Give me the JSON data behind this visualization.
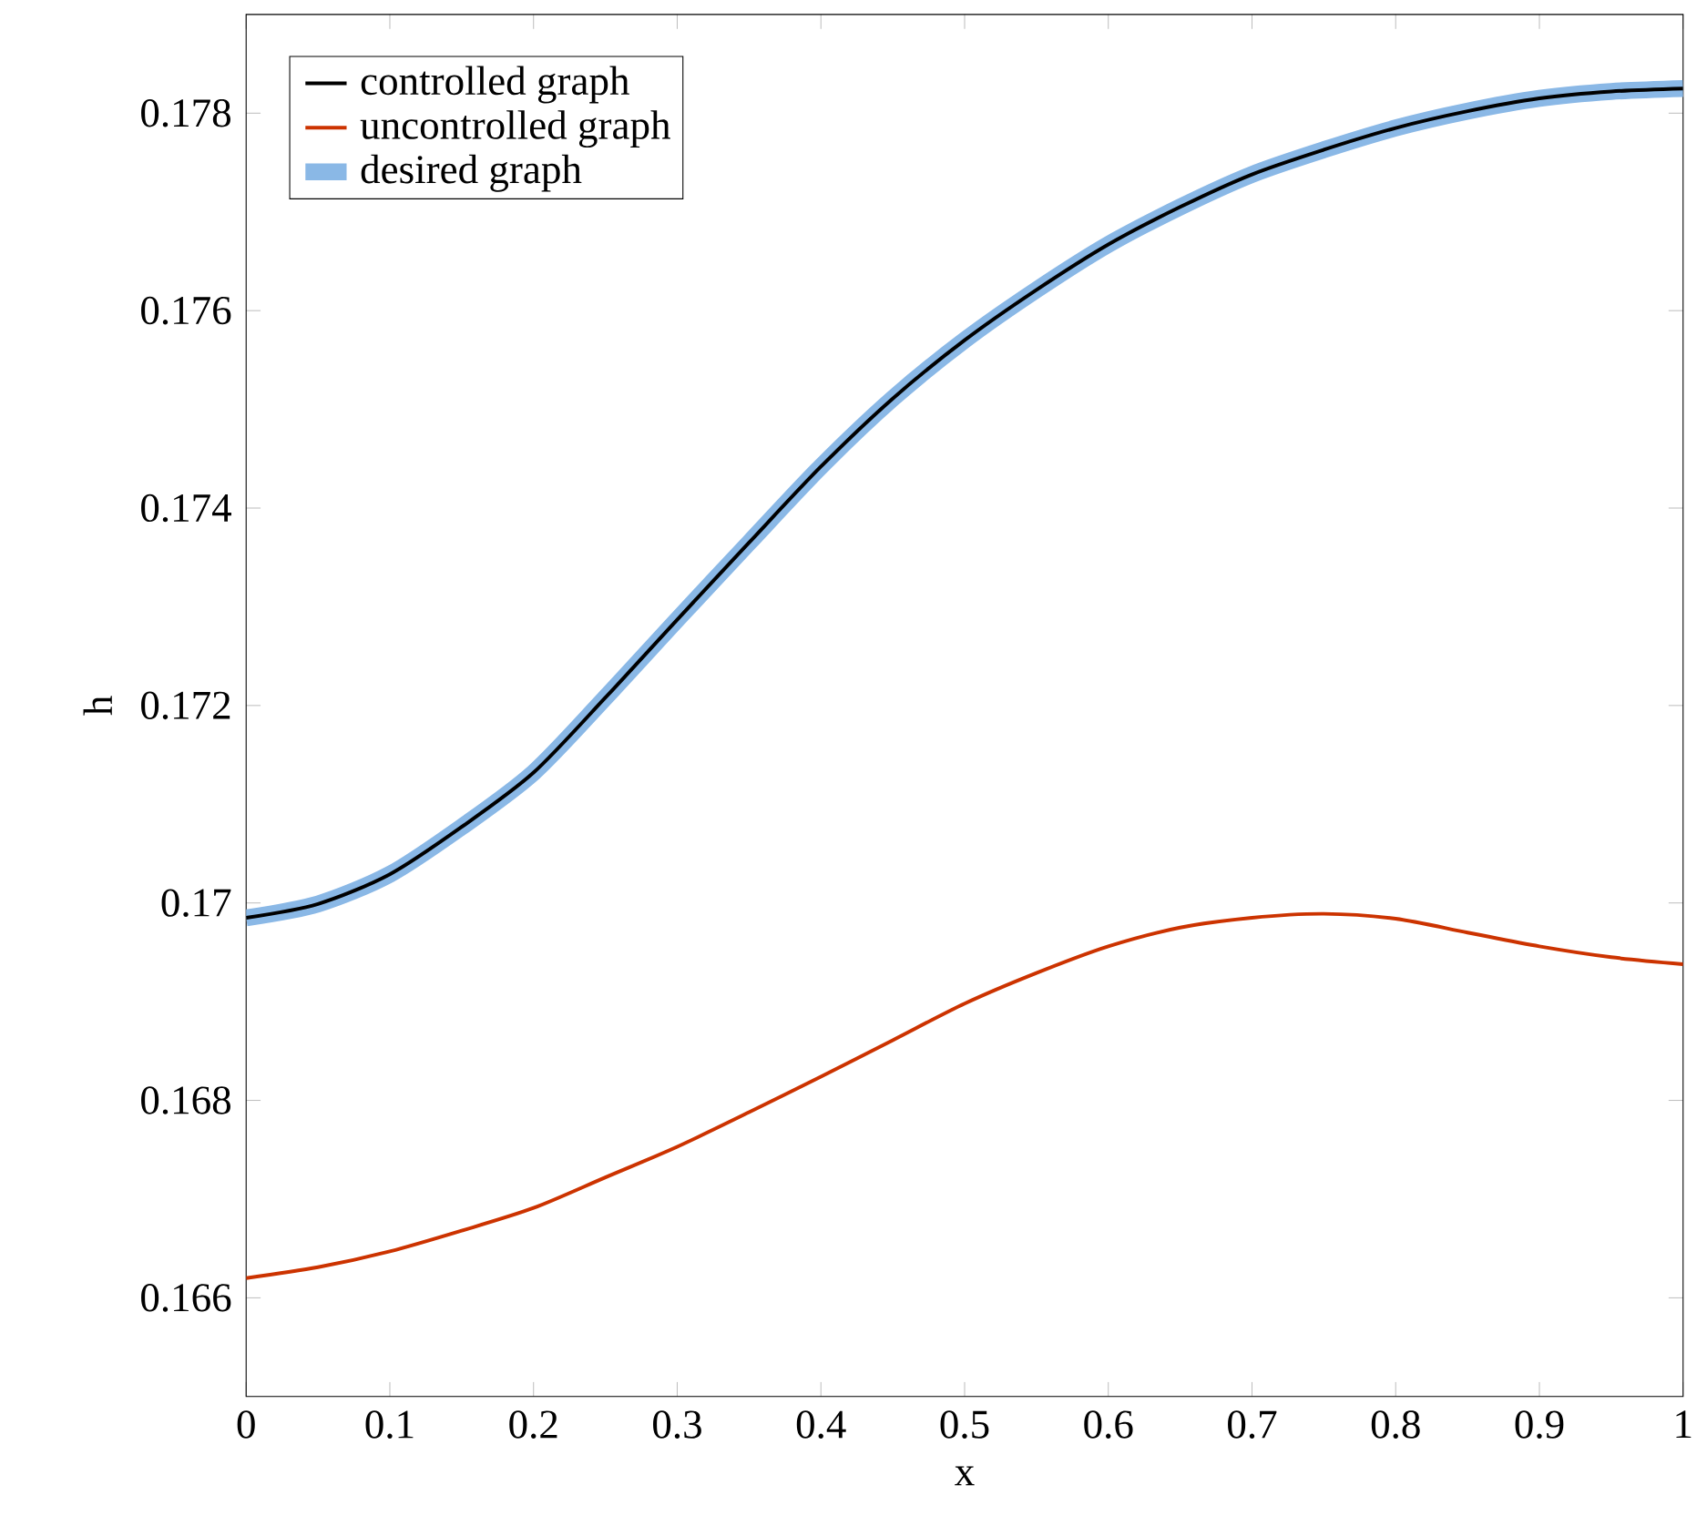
{
  "chart_data": {
    "type": "line",
    "xlabel": "x",
    "ylabel": "h",
    "xlim": [
      0,
      1
    ],
    "ylim": [
      0.165,
      0.179
    ],
    "xticks": [
      0,
      0.1,
      0.2,
      0.3,
      0.4,
      0.5,
      0.6,
      0.7,
      0.8,
      0.9,
      1
    ],
    "yticks": [
      0.166,
      0.168,
      0.17,
      0.172,
      0.174,
      0.176,
      0.178
    ],
    "x": [
      0,
      0.05,
      0.1,
      0.15,
      0.2,
      0.25,
      0.3,
      0.35,
      0.4,
      0.45,
      0.5,
      0.55,
      0.6,
      0.65,
      0.7,
      0.75,
      0.8,
      0.85,
      0.9,
      0.95,
      1
    ],
    "legend": "top left",
    "grid": false,
    "marker": "none",
    "line_style": "solid",
    "series": [
      {
        "name": "controlled graph",
        "color": "#000000",
        "values": [
          0.16985,
          0.16999,
          0.17029,
          0.17077,
          0.17132,
          0.17208,
          0.17287,
          0.17365,
          0.17442,
          0.17511,
          0.1757,
          0.17621,
          0.17667,
          0.17705,
          0.17738,
          0.17763,
          0.17785,
          0.17802,
          0.17815,
          0.17822,
          0.17825
        ]
      },
      {
        "name": "uncontrolled graph",
        "color": "#cc3300",
        "values": [
          0.1662,
          0.16631,
          0.16647,
          0.16668,
          0.16691,
          0.16722,
          0.16753,
          0.16788,
          0.16824,
          0.16861,
          0.16898,
          0.16929,
          0.16956,
          0.16975,
          0.16985,
          0.16989,
          0.16984,
          0.1697,
          0.16956,
          0.16945,
          0.16938
        ]
      },
      {
        "name": "desired graph",
        "color": "#8ab8e6",
        "values": [
          0.16985,
          0.16999,
          0.17029,
          0.17077,
          0.17132,
          0.17208,
          0.17287,
          0.17365,
          0.17442,
          0.17511,
          0.1757,
          0.17621,
          0.17667,
          0.17705,
          0.17738,
          0.17763,
          0.17785,
          0.17802,
          0.17815,
          0.17822,
          0.17825
        ]
      }
    ]
  }
}
